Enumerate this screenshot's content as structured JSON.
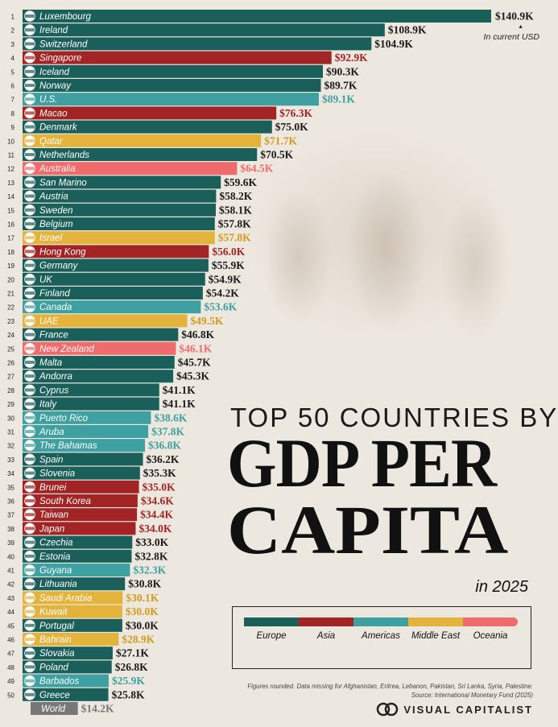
{
  "header": {
    "unit_note": "In current USD"
  },
  "title": {
    "line1": "TOP 50 COUNTRIES BY",
    "line2": "GDP PER",
    "line3": "CAPITA",
    "line4": "in 2025"
  },
  "legend": {
    "items": [
      {
        "label": "Europe",
        "region": "europe"
      },
      {
        "label": "Asia",
        "region": "asia"
      },
      {
        "label": "Americas",
        "region": "americas"
      },
      {
        "label": "Middle East",
        "region": "middle_east"
      },
      {
        "label": "Oceania",
        "region": "oceania"
      }
    ]
  },
  "footer": {
    "note": "Figures rounded. Data missing for Afghanistan, Eritrea, Lebanon, Pakistan, Sri Lanka, Syria, Palestine.",
    "source": "Source: International Monetary Fund (2025)",
    "brand": "VISUAL CAPITALIST"
  },
  "colors": {
    "europe": "#1b5f5a",
    "asia": "#a32424",
    "americas": "#3ea0a0",
    "middle_east": "#e4b33c",
    "oceania": "#f06b6b",
    "world": "#777777"
  },
  "chart_data": {
    "type": "bar",
    "orientation": "horizontal",
    "xlim": [
      0,
      140.9
    ],
    "value_unit": "$K",
    "rows": [
      {
        "rank": "1",
        "country": "Luxembourg",
        "value": 140.9,
        "label": "$140.9K",
        "region": "europe",
        "flag": "luxembourg-flag"
      },
      {
        "rank": "2",
        "country": "Ireland",
        "value": 108.9,
        "label": "$108.9K",
        "region": "europe",
        "flag": "ireland-flag"
      },
      {
        "rank": "3",
        "country": "Switzerland",
        "value": 104.9,
        "label": "$104.9K",
        "region": "europe",
        "flag": "switzerland-flag"
      },
      {
        "rank": "4",
        "country": "Singapore",
        "value": 92.9,
        "label": "$92.9K",
        "region": "asia",
        "flag": "singapore-flag"
      },
      {
        "rank": "5",
        "country": "Iceland",
        "value": 90.3,
        "label": "$90.3K",
        "region": "europe",
        "flag": "iceland-flag"
      },
      {
        "rank": "6",
        "country": "Norway",
        "value": 89.7,
        "label": "$89.7K",
        "region": "europe",
        "flag": "norway-flag"
      },
      {
        "rank": "7",
        "country": "U.S.",
        "value": 89.1,
        "label": "$89.1K",
        "region": "americas",
        "flag": "us-flag"
      },
      {
        "rank": "8",
        "country": "Macao",
        "value": 76.3,
        "label": "$76.3K",
        "region": "asia",
        "flag": "macao-flag"
      },
      {
        "rank": "9",
        "country": "Denmark",
        "value": 75.0,
        "label": "$75.0K",
        "region": "europe",
        "flag": "denmark-flag"
      },
      {
        "rank": "10",
        "country": "Qatar",
        "value": 71.7,
        "label": "$71.7K",
        "region": "middle_east",
        "flag": "qatar-flag"
      },
      {
        "rank": "11",
        "country": "Netherlands",
        "value": 70.5,
        "label": "$70.5K",
        "region": "europe",
        "flag": "netherlands-flag"
      },
      {
        "rank": "12",
        "country": "Australia",
        "value": 64.5,
        "label": "$64.5K",
        "region": "oceania",
        "flag": "australia-flag"
      },
      {
        "rank": "13",
        "country": "San Marino",
        "value": 59.6,
        "label": "$59.6K",
        "region": "europe",
        "flag": "san-marino-flag"
      },
      {
        "rank": "14",
        "country": "Austria",
        "value": 58.2,
        "label": "$58.2K",
        "region": "europe",
        "flag": "austria-flag"
      },
      {
        "rank": "15",
        "country": "Sweden",
        "value": 58.1,
        "label": "$58.1K",
        "region": "europe",
        "flag": "sweden-flag"
      },
      {
        "rank": "16",
        "country": "Belgium",
        "value": 57.8,
        "label": "$57.8K",
        "region": "europe",
        "flag": "belgium-flag"
      },
      {
        "rank": "17",
        "country": "Israel",
        "value": 57.8,
        "label": "$57.8K",
        "region": "middle_east",
        "flag": "israel-flag"
      },
      {
        "rank": "18",
        "country": "Hong Kong",
        "value": 56.0,
        "label": "$56.0K",
        "region": "asia",
        "flag": "hong-kong-flag"
      },
      {
        "rank": "19",
        "country": "Germany",
        "value": 55.9,
        "label": "$55.9K",
        "region": "europe",
        "flag": "germany-flag"
      },
      {
        "rank": "20",
        "country": "UK",
        "value": 54.9,
        "label": "$54.9K",
        "region": "europe",
        "flag": "uk-flag"
      },
      {
        "rank": "21",
        "country": "Finland",
        "value": 54.2,
        "label": "$54.2K",
        "region": "europe",
        "flag": "finland-flag"
      },
      {
        "rank": "22",
        "country": "Canada",
        "value": 53.6,
        "label": "$53.6K",
        "region": "americas",
        "flag": "canada-flag"
      },
      {
        "rank": "23",
        "country": "UAE",
        "value": 49.5,
        "label": "$49.5K",
        "region": "middle_east",
        "flag": "uae-flag"
      },
      {
        "rank": "24",
        "country": "France",
        "value": 46.8,
        "label": "$46.8K",
        "region": "europe",
        "flag": "france-flag"
      },
      {
        "rank": "25",
        "country": "New Zealand",
        "value": 46.1,
        "label": "$46.1K",
        "region": "oceania",
        "flag": "new-zealand-flag"
      },
      {
        "rank": "26",
        "country": "Malta",
        "value": 45.7,
        "label": "$45.7K",
        "region": "europe",
        "flag": "malta-flag"
      },
      {
        "rank": "27",
        "country": "Andorra",
        "value": 45.3,
        "label": "$45.3K",
        "region": "europe",
        "flag": "andorra-flag"
      },
      {
        "rank": "28",
        "country": "Cyprus",
        "value": 41.1,
        "label": "$41.1K",
        "region": "europe",
        "flag": "cyprus-flag"
      },
      {
        "rank": "29",
        "country": "Italy",
        "value": 41.1,
        "label": "$41.1K",
        "region": "europe",
        "flag": "italy-flag"
      },
      {
        "rank": "30",
        "country": "Puerto Rico",
        "value": 38.6,
        "label": "$38.6K",
        "region": "americas",
        "flag": "puerto-rico-flag"
      },
      {
        "rank": "31",
        "country": "Aruba",
        "value": 37.8,
        "label": "$37.8K",
        "region": "americas",
        "flag": "aruba-flag"
      },
      {
        "rank": "32",
        "country": "The Bahamas",
        "value": 36.8,
        "label": "$36.8K",
        "region": "americas",
        "flag": "bahamas-flag"
      },
      {
        "rank": "33",
        "country": "Spain",
        "value": 36.2,
        "label": "$36.2K",
        "region": "europe",
        "flag": "spain-flag"
      },
      {
        "rank": "34",
        "country": "Slovenia",
        "value": 35.3,
        "label": "$35.3K",
        "region": "europe",
        "flag": "slovenia-flag"
      },
      {
        "rank": "35",
        "country": "Brunei",
        "value": 35.0,
        "label": "$35.0K",
        "region": "asia",
        "flag": "brunei-flag"
      },
      {
        "rank": "36",
        "country": "South Korea",
        "value": 34.6,
        "label": "$34.6K",
        "region": "asia",
        "flag": "south-korea-flag"
      },
      {
        "rank": "37",
        "country": "Taiwan",
        "value": 34.4,
        "label": "$34.4K",
        "region": "asia",
        "flag": "taiwan-flag"
      },
      {
        "rank": "38",
        "country": "Japan",
        "value": 34.0,
        "label": "$34.0K",
        "region": "asia",
        "flag": "japan-flag"
      },
      {
        "rank": "39",
        "country": "Czechia",
        "value": 33.0,
        "label": "$33.0K",
        "region": "europe",
        "flag": "czechia-flag"
      },
      {
        "rank": "40",
        "country": "Estonia",
        "value": 32.8,
        "label": "$32.8K",
        "region": "europe",
        "flag": "estonia-flag"
      },
      {
        "rank": "41",
        "country": "Guyana",
        "value": 32.3,
        "label": "$32.3K",
        "region": "americas",
        "flag": "guyana-flag"
      },
      {
        "rank": "42",
        "country": "Lithuania",
        "value": 30.8,
        "label": "$30.8K",
        "region": "europe",
        "flag": "lithuania-flag"
      },
      {
        "rank": "43",
        "country": "Saudi Arabia",
        "value": 30.1,
        "label": "$30.1K",
        "region": "middle_east",
        "flag": "saudi-arabia-flag"
      },
      {
        "rank": "44",
        "country": "Kuwait",
        "value": 30.0,
        "label": "$30.0K",
        "region": "middle_east",
        "flag": "kuwait-flag"
      },
      {
        "rank": "45",
        "country": "Portugal",
        "value": 30.0,
        "label": "$30.0K",
        "region": "europe",
        "flag": "portugal-flag"
      },
      {
        "rank": "46",
        "country": "Bahrain",
        "value": 28.9,
        "label": "$28.9K",
        "region": "middle_east",
        "flag": "bahrain-flag"
      },
      {
        "rank": "47",
        "country": "Slovakia",
        "value": 27.1,
        "label": "$27.1K",
        "region": "europe",
        "flag": "slovakia-flag"
      },
      {
        "rank": "48",
        "country": "Poland",
        "value": 26.8,
        "label": "$26.8K",
        "region": "europe",
        "flag": "poland-flag"
      },
      {
        "rank": "49",
        "country": "Barbados",
        "value": 25.9,
        "label": "$25.9K",
        "region": "americas",
        "flag": "barbados-flag"
      },
      {
        "rank": "50",
        "country": "Greece",
        "value": 25.8,
        "label": "$25.8K",
        "region": "europe",
        "flag": "greece-flag"
      },
      {
        "rank": "",
        "country": "World",
        "value": 14.2,
        "label": "$14.2K",
        "region": "world",
        "flag": ""
      }
    ]
  }
}
